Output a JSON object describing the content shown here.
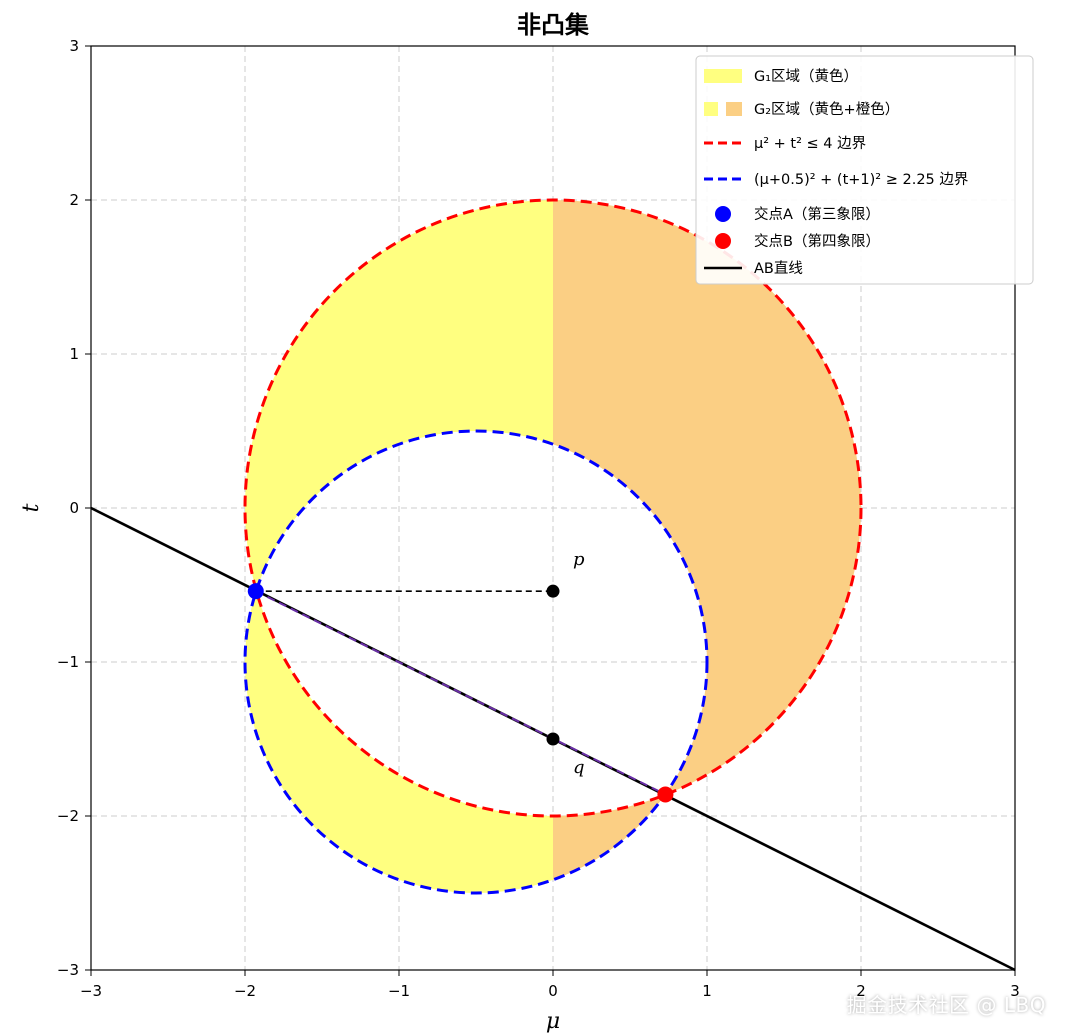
{
  "chart_data": {
    "type": "area",
    "title": "非凸集",
    "xlabel": "μ",
    "ylabel": "t",
    "xlim": [
      -3,
      3
    ],
    "ylim": [
      -3,
      3
    ],
    "xticks": [
      -3,
      -2,
      -1,
      0,
      1,
      2,
      3
    ],
    "yticks": [
      -3,
      -2,
      -1,
      0,
      1,
      2,
      3
    ],
    "xtick_labels": [
      "−3",
      "−2",
      "−1",
      "0",
      "1",
      "2",
      "3"
    ],
    "ytick_labels": [
      "−3",
      "−2",
      "−1",
      "0",
      "1",
      "2",
      "3"
    ],
    "grid": true,
    "legend_position": "top-right",
    "regions": {
      "outer_circle": {
        "center": [
          0,
          0
        ],
        "radius": 2
      },
      "inner_circle": {
        "center": [
          -0.5,
          -1
        ],
        "radius": 1.5
      },
      "split_x": 0
    },
    "series": [
      {
        "name": "G₁区域（黄色）",
        "kind": "fill",
        "color": "#ffff80"
      },
      {
        "name": "G₂区域（黄色+橙色）",
        "kind": "fill",
        "color": "#fbcf84"
      },
      {
        "name": "μ² + t² ≤ 4  边界",
        "kind": "dashed-line",
        "color": "#ff0000"
      },
      {
        "name": "(μ+0.5)² + (t+1)² ≥ 2.25  边界",
        "kind": "dashed-line",
        "color": "#0000ff"
      },
      {
        "name": "交点A（第三象限）",
        "kind": "point",
        "color": "#0000ff",
        "x": -1.93,
        "y": -0.54
      },
      {
        "name": "交点B（第四象限）",
        "kind": "point",
        "color": "#ff0000",
        "x": 0.73,
        "y": -1.86
      },
      {
        "name": "AB直线",
        "kind": "line",
        "color": "#000000",
        "x": [
          -3,
          3
        ],
        "y": [
          0,
          -3
        ]
      }
    ],
    "annotations": [
      {
        "label": "p",
        "x": 0,
        "y": -0.54,
        "color": "#000000"
      },
      {
        "label": "q",
        "x": 0,
        "y": -1.5,
        "color": "#000000"
      }
    ],
    "dashed_connector": {
      "from": [
        -1.93,
        -0.54
      ],
      "to": [
        0,
        -0.54
      ],
      "color": "#000000"
    }
  },
  "watermark": "掘金技术社区 @ LBQ"
}
